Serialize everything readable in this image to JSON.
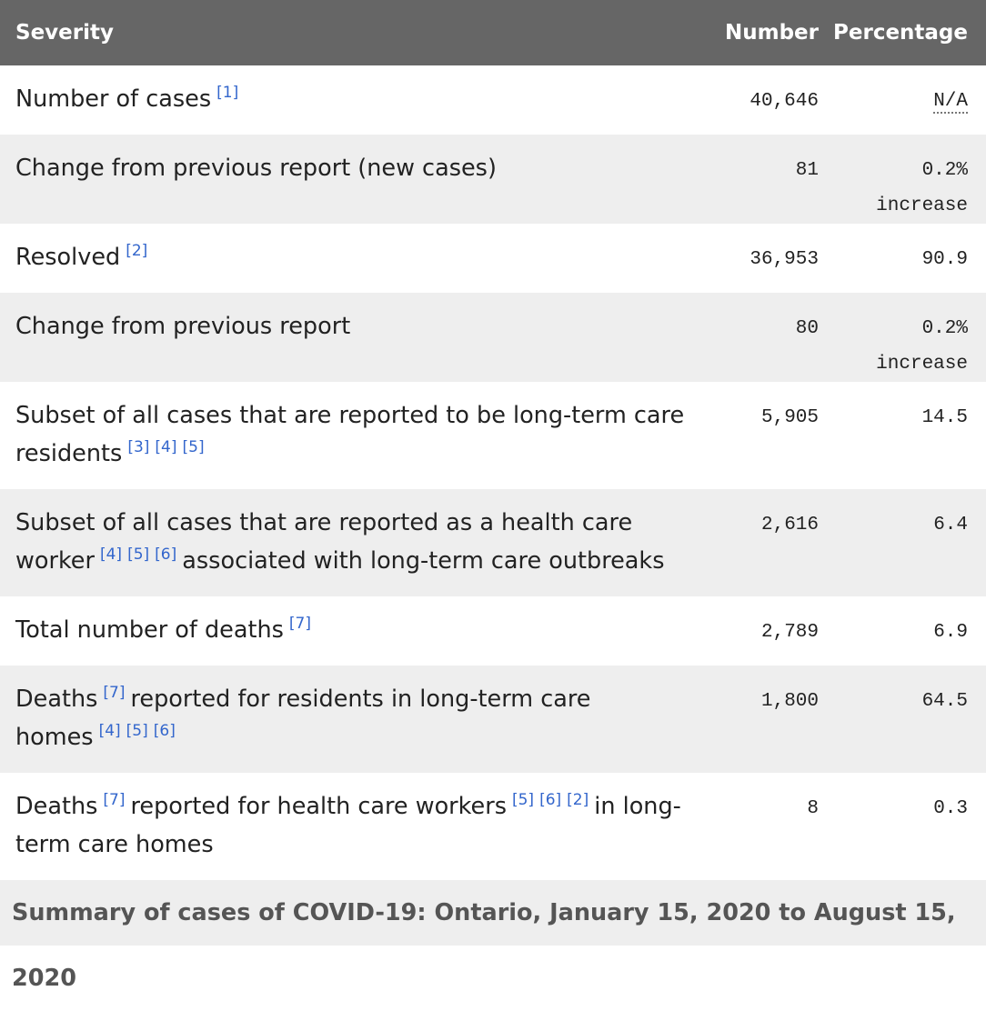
{
  "table": {
    "headers": [
      "Severity",
      "Number",
      "Percentage"
    ],
    "rows": [
      {
        "label": [
          {
            "text": "Number of cases"
          },
          {
            "ref": "[1]"
          }
        ],
        "number": "40,646",
        "percentage": "N/A"
      },
      {
        "label": [
          {
            "text": "Change from previous report (new cases)"
          }
        ],
        "number": "81",
        "percentage": "0.2% increase"
      },
      {
        "label": [
          {
            "text": "Resolved"
          },
          {
            "ref": "[2]"
          }
        ],
        "number": "36,953",
        "percentage": "90.9"
      },
      {
        "label": [
          {
            "text": "Change from previous report"
          }
        ],
        "number": "80",
        "percentage": "0.2% increase"
      },
      {
        "label": [
          {
            "text": "Subset of all cases that are reported to be long-term care residents"
          },
          {
            "ref": "[3]"
          },
          {
            "ref": "[4]"
          },
          {
            "ref": "[5]"
          }
        ],
        "number": "5,905",
        "percentage": "14.5"
      },
      {
        "label": [
          {
            "text": "Subset of all cases that are reported as a health care worker"
          },
          {
            "ref": "[4]"
          },
          {
            "ref": "[5]"
          },
          {
            "ref": "[6]"
          },
          {
            "text": "associated with long-term care outbreaks"
          }
        ],
        "number": "2,616",
        "percentage": "6.4"
      },
      {
        "label": [
          {
            "text": "Total number of deaths"
          },
          {
            "ref": "[7]"
          }
        ],
        "number": "2,789",
        "percentage": "6.9"
      },
      {
        "label": [
          {
            "text": "Deaths"
          },
          {
            "ref": "[7]"
          },
          {
            "text": "reported for residents in long-term care homes"
          },
          {
            "ref": "[4]"
          },
          {
            "ref": "[5]"
          },
          {
            "ref": "[6]"
          }
        ],
        "number": "1,800",
        "percentage": "64.5"
      },
      {
        "label": [
          {
            "text": "Deaths"
          },
          {
            "ref": "[7]"
          },
          {
            "text": "reported for health care workers"
          },
          {
            "ref": "[5]"
          },
          {
            "ref": "[6]"
          },
          {
            "ref": "[2]"
          },
          {
            "text": "in long-term care homes"
          }
        ],
        "number": "8",
        "percentage": "0.3"
      }
    ]
  },
  "caption": "Summary of cases of COVID-19: Ontario, January 15, 2020 to August 15, 2020"
}
